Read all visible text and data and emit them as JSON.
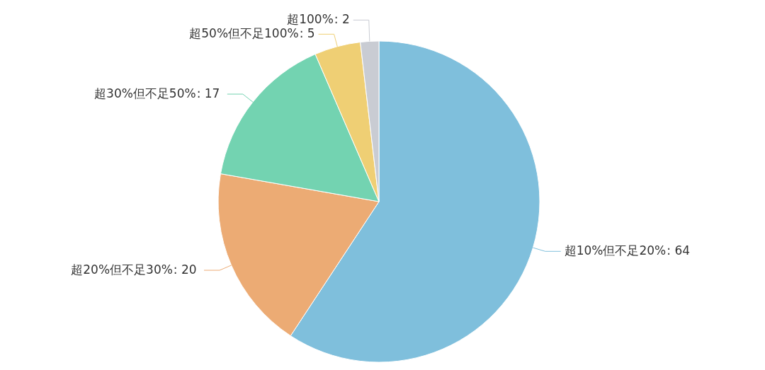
{
  "chart_data": {
    "type": "pie",
    "categories": [
      "超10%但不足20%",
      "超20%但不足30%",
      "超30%但不足50%",
      "超50%但不足100%",
      "超100%"
    ],
    "values": [
      64,
      20,
      17,
      5,
      2
    ],
    "value_labels": [
      ": 64",
      " : 20",
      " : 17",
      ": 5",
      ": 2"
    ],
    "colors": [
      "#7fbfdc",
      "#ecab74",
      "#73d3b1",
      "#efcf74",
      "#c9ccd3"
    ],
    "legend": false
  }
}
